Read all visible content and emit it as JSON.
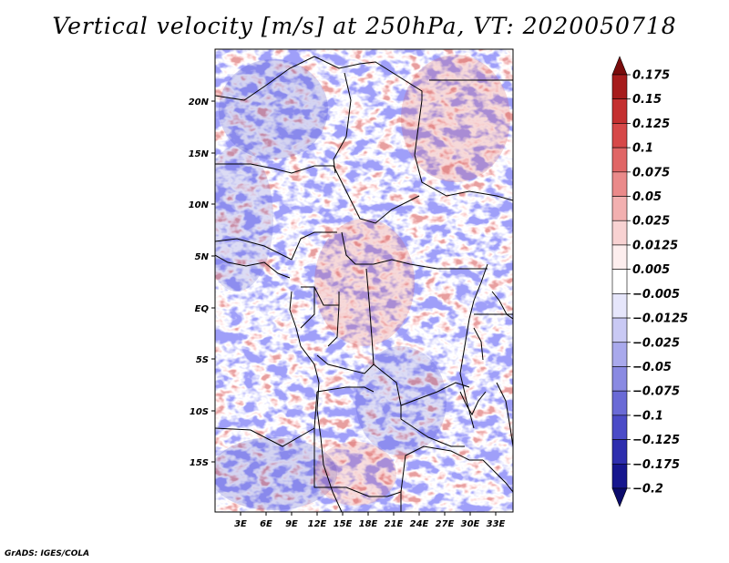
{
  "title": "Vertical velocity [m/s] at 250hPa, VT: 2020050718",
  "footer": "GrADS: IGES/COLA",
  "lat_ticks": [
    "20N",
    "15N",
    "10N",
    "5N",
    "EQ",
    "5S",
    "10S",
    "15S"
  ],
  "lon_ticks": [
    "3E",
    "6E",
    "9E",
    "12E",
    "15E",
    "18E",
    "21E",
    "24E",
    "27E",
    "30E",
    "33E"
  ],
  "colorbar": {
    "labels": [
      "0.175",
      "0.15",
      "0.125",
      "0.1",
      "0.075",
      "0.05",
      "0.025",
      "0.0125",
      "0.005",
      "−0.005",
      "−0.0125",
      "−0.025",
      "−0.05",
      "−0.075",
      "−0.1",
      "−0.125",
      "−0.175",
      "−0.2"
    ],
    "colors": [
      "#7a0c0c",
      "#a61c1c",
      "#c43030",
      "#d64848",
      "#e06666",
      "#ea8a8a",
      "#f2b0b0",
      "#f8d2d2",
      "#fdeeee",
      "#ffffff",
      "#e6e6fb",
      "#c9c9f4",
      "#a9a9ec",
      "#8a8ae2",
      "#6a6ad6",
      "#4b4bc7",
      "#2e2eae",
      "#16168e",
      "#0b0b6c"
    ]
  },
  "map_extent": {
    "lon_min": 0,
    "lon_max": 35,
    "lat_min": -20,
    "lat_max": 24.5
  }
}
